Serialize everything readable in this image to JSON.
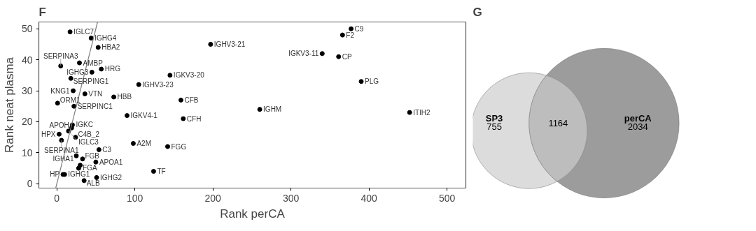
{
  "chart_data": [
    {
      "type": "scatter",
      "title": "F",
      "xlabel": "Rank perCA",
      "ylabel": "Rank neat plasma",
      "xlim": [
        -23,
        524
      ],
      "ylim": [
        -1.4,
        52.2
      ],
      "xticks": [
        0,
        100,
        200,
        300,
        400,
        500
      ],
      "yticks": [
        0,
        10,
        20,
        30,
        40,
        50
      ],
      "grid": false,
      "series": [
        {
          "type": "scatter",
          "color": "#000000",
          "marker": "circle",
          "x": [
            17,
            44,
            53,
            29,
            57,
            5,
            45,
            18,
            21,
            105,
            36,
            73,
            1,
            22,
            90,
            162,
            159,
            145,
            20,
            19,
            15,
            3,
            24,
            6,
            98,
            54,
            142,
            25,
            33,
            50,
            30,
            28,
            10,
            8,
            124,
            35,
            51,
            197,
            340,
            361,
            366,
            377,
            390,
            260,
            452
          ],
          "values": [
            49,
            47,
            44,
            39,
            37,
            38,
            36,
            34,
            30,
            32,
            29,
            28,
            26,
            25,
            22,
            21,
            27,
            35,
            19,
            18,
            17,
            16,
            15,
            14,
            13,
            11,
            12,
            9,
            8,
            7,
            6,
            5,
            3,
            3,
            4,
            1,
            2,
            45,
            42,
            41,
            48,
            50,
            33,
            24,
            23
          ]
        },
        {
          "type": "line",
          "color": "#808080",
          "marker": "none",
          "x": [
            -1.4,
            52.2
          ],
          "values": [
            -1.4,
            52.2
          ]
        }
      ],
      "annotations": [
        {
          "text": "IGLC7",
          "x": 17,
          "y": 49
        },
        {
          "text": "IGHG4",
          "x": 44,
          "y": 47
        },
        {
          "text": "HBA2",
          "x": 53,
          "y": 44
        },
        {
          "text": "AMBP",
          "x": 29,
          "y": 39
        },
        {
          "text": "HRG",
          "x": 57,
          "y": 37
        },
        {
          "text": "SERPINA3",
          "x": 5,
          "y": 38
        },
        {
          "text": "IGHG3",
          "x": 45,
          "y": 36
        },
        {
          "text": "SERPING1",
          "x": 18,
          "y": 34
        },
        {
          "text": "KNG1",
          "x": 21,
          "y": 30
        },
        {
          "text": "IGHV3-23",
          "x": 105,
          "y": 32
        },
        {
          "text": "VTN",
          "x": 36,
          "y": 29
        },
        {
          "text": "HBB",
          "x": 73,
          "y": 28
        },
        {
          "text": "ORM1",
          "x": 1,
          "y": 26
        },
        {
          "text": "SERPINC1",
          "x": 22,
          "y": 25
        },
        {
          "text": "IGKV4-1",
          "x": 90,
          "y": 22
        },
        {
          "text": "CFH",
          "x": 162,
          "y": 21
        },
        {
          "text": "CFB",
          "x": 159,
          "y": 27
        },
        {
          "text": "IGKV3-20",
          "x": 145,
          "y": 35
        },
        {
          "text": "IGKC",
          "x": 20,
          "y": 19
        },
        {
          "text": "APOH",
          "x": 19,
          "y": 18
        },
        {
          "text": "IGLC3",
          "x": 15,
          "y": 17
        },
        {
          "text": "HPX",
          "x": 3,
          "y": 16
        },
        {
          "text": "C4B_2",
          "x": 24,
          "y": 15
        },
        {
          "text": "SERPINA1",
          "x": 6,
          "y": 14
        },
        {
          "text": "A2M",
          "x": 98,
          "y": 13
        },
        {
          "text": "C3",
          "x": 54,
          "y": 11
        },
        {
          "text": "FGG",
          "x": 142,
          "y": 12
        },
        {
          "text": "IGHA1",
          "x": 25,
          "y": 9
        },
        {
          "text": "FGB",
          "x": 33,
          "y": 8
        },
        {
          "text": "APOA1",
          "x": 50,
          "y": 7
        },
        {
          "text": "FGA",
          "x": 30,
          "y": 6
        },
        {
          "text": "IGHG1",
          "x": 10,
          "y": 3
        },
        {
          "text": "HP",
          "x": 8,
          "y": 3
        },
        {
          "text": "TF",
          "x": 124,
          "y": 4
        },
        {
          "text": "ALB",
          "x": 35,
          "y": 1
        },
        {
          "text": "IGHG2",
          "x": 51,
          "y": 2
        },
        {
          "text": "IGHV3-21",
          "x": 197,
          "y": 45
        },
        {
          "text": "IGKV3-11",
          "x": 340,
          "y": 42
        },
        {
          "text": "CP",
          "x": 361,
          "y": 41
        },
        {
          "text": "F2",
          "x": 366,
          "y": 48
        },
        {
          "text": "C9",
          "x": 377,
          "y": 50
        },
        {
          "text": "PLG",
          "x": 390,
          "y": 33
        },
        {
          "text": "IGHM",
          "x": 260,
          "y": 24
        },
        {
          "text": "ITIH2",
          "x": 452,
          "y": 23
        }
      ]
    },
    {
      "type": "other",
      "title": "G",
      "categories": [
        "SP3",
        null,
        "perCA"
      ],
      "values": [
        755,
        1164,
        2034
      ],
      "data_labels": true,
      "colors": [
        "#dcdcdc",
        "#bdbdbd",
        "#9c9c9c"
      ]
    }
  ]
}
